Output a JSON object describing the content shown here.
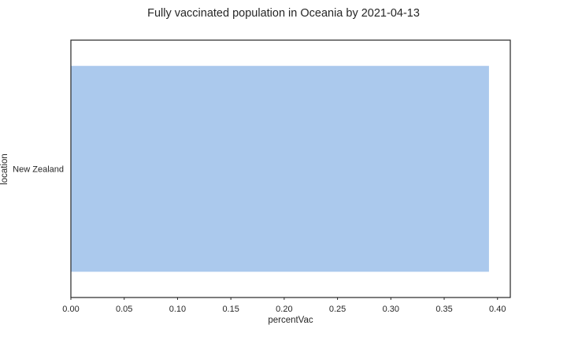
{
  "chart_data": {
    "type": "bar",
    "orientation": "horizontal",
    "title": "Fully vaccinated population in Oceania by 2021-04-13",
    "xlabel": "percentVac",
    "ylabel": "location",
    "categories": [
      "New Zealand"
    ],
    "values": [
      0.392
    ],
    "xlim": [
      0,
      0.412
    ],
    "xticks": [
      "0.00",
      "0.05",
      "0.10",
      "0.15",
      "0.20",
      "0.25",
      "0.30",
      "0.35",
      "0.40"
    ],
    "grid": false,
    "legend": "none",
    "bar_color": "#abc9ed"
  }
}
